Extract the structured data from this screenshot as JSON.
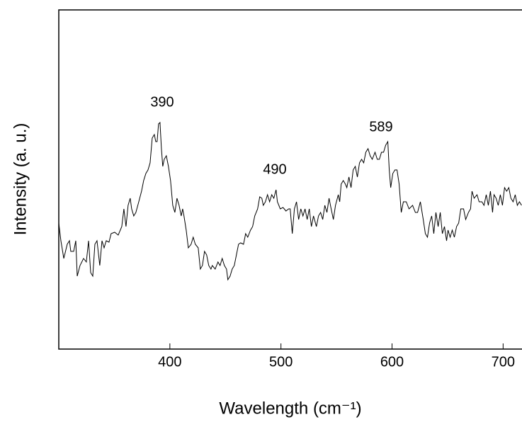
{
  "chart_data": {
    "type": "line",
    "xlabel": "Wavelength (cm⁻¹)",
    "ylabel": "Intensity (a. u.)",
    "annotations": [
      "390",
      "490",
      "589"
    ],
    "xlim": [
      300,
      717
    ],
    "ylim": [
      0,
      479
    ],
    "xticks": [
      400,
      500,
      600,
      700
    ],
    "series": [
      {
        "color": "#000000",
        "x": [
          300.0,
          301.9,
          304.5,
          307.6,
          309.6,
          310.8,
          313.4,
          315.3,
          316.6,
          319.1,
          322.3,
          324.8,
          326.8,
          328.7,
          330.6,
          332.5,
          334.4,
          336.9,
          338.9,
          340.8,
          342.7,
          345.2,
          347.1,
          350.3,
          353.5,
          356.7,
          358.6,
          360.5,
          362.4,
          364.3,
          365.6,
          367.5,
          369.4,
          372.0,
          374.5,
          376.4,
          378.4,
          380.3,
          382.2,
          384.1,
          386.0,
          387.3,
          388.5,
          389.8,
          391.1,
          392.4,
          393.6,
          394.9,
          396.8,
          398.7,
          400.6,
          402.6,
          404.5,
          406.4,
          408.3,
          410.2,
          411.5,
          412.7,
          414.7,
          416.6,
          419.1,
          421.0,
          422.9,
          425.5,
          427.4,
          429.3,
          431.2,
          433.1,
          435.0,
          437.0,
          438.2,
          440.8,
          443.3,
          445.2,
          447.1,
          449.1,
          451.0,
          452.2,
          454.2,
          456.1,
          458.0,
          459.9,
          461.8,
          463.7,
          466.3,
          468.2,
          470.1,
          472.6,
          474.5,
          476.4,
          479.0,
          480.9,
          482.8,
          484.1,
          486.0,
          487.9,
          489.8,
          491.7,
          493.6,
          495.6,
          496.8,
          499.4,
          501.9,
          504.5,
          507.0,
          508.3,
          510.2,
          512.1,
          514.0,
          515.9,
          517.9,
          519.8,
          521.7,
          523.6,
          525.5,
          527.4,
          529.3,
          531.9,
          533.8,
          535.7,
          537.6,
          539.5,
          541.4,
          543.3,
          545.2,
          547.2,
          549.1,
          551.6,
          552.9,
          554.2,
          556.1,
          558.0,
          559.3,
          561.2,
          563.1,
          565.0,
          566.9,
          568.8,
          570.7,
          572.6,
          574.5,
          576.4,
          578.4,
          580.3,
          582.2,
          584.7,
          586.7,
          588.6,
          590.5,
          592.4,
          594.3,
          596.2,
          597.5,
          598.8,
          600.7,
          602.6,
          604.5,
          606.4,
          608.3,
          610.2,
          612.8,
          615.3,
          618.5,
          621.0,
          623.0,
          625.5,
          628.1,
          630.0,
          631.9,
          633.8,
          635.7,
          637.6,
          639.5,
          641.5,
          643.4,
          645.3,
          647.2,
          649.1,
          650.4,
          652.3,
          654.2,
          656.1,
          658.1,
          660.0,
          661.9,
          664.4,
          666.3,
          668.8,
          670.7,
          672.0,
          673.9,
          676.5,
          678.4,
          680.9,
          682.8,
          684.8,
          686.7,
          688.6,
          690.5,
          691.8,
          693.7,
          695.6,
          697.5,
          699.4,
          701.3,
          703.2,
          705.1,
          707.0,
          709.0,
          710.9,
          712.8,
          714.7,
          716.6
        ],
        "values": [
          178,
          153,
          128,
          148,
          153,
          138,
          138,
          153,
          103,
          118,
          128,
          123,
          153,
          108,
          103,
          148,
          153,
          118,
          153,
          143,
          153,
          151,
          163,
          165,
          161,
          173,
          198,
          173,
          203,
          213,
          198,
          188,
          193,
          208,
          223,
          238,
          248,
          253,
          263,
          298,
          303,
          293,
          293,
          318,
          320,
          283,
          258,
          268,
          273,
          258,
          238,
          203,
          193,
          213,
          203,
          188,
          198,
          188,
          168,
          143,
          148,
          158,
          148,
          143,
          113,
          118,
          138,
          133,
          118,
          113,
          118,
          113,
          123,
          118,
          128,
          118,
          113,
          98,
          103,
          113,
          118,
          133,
          148,
          150,
          148,
          163,
          158,
          168,
          173,
          188,
          198,
          215,
          213,
          203,
          208,
          218,
          208,
          218,
          213,
          225,
          208,
          198,
          200,
          195,
          198,
          198,
          163,
          198,
          208,
          183,
          198,
          188,
          198,
          183,
          198,
          173,
          188,
          173,
          188,
          193,
          183,
          203,
          193,
          213,
          198,
          183,
          203,
          218,
          208,
          233,
          238,
          233,
          228,
          243,
          228,
          253,
          258,
          243,
          263,
          268,
          263,
          278,
          283,
          273,
          268,
          278,
          268,
          268,
          278,
          278,
          288,
          293,
          253,
          228,
          248,
          253,
          253,
          233,
          193,
          208,
          208,
          198,
          203,
          193,
          193,
          208,
          183,
          163,
          158,
          178,
          188,
          163,
          193,
          173,
          193,
          163,
          173,
          153,
          168,
          158,
          168,
          158,
          173,
          178,
          198,
          198,
          183,
          193,
          198,
          223,
          213,
          218,
          208,
          208,
          203,
          218,
          203,
          223,
          193,
          218,
          213,
          203,
          218,
          203,
          228,
          223,
          228,
          213,
          208,
          218,
          203,
          208,
          203
        ]
      }
    ]
  }
}
